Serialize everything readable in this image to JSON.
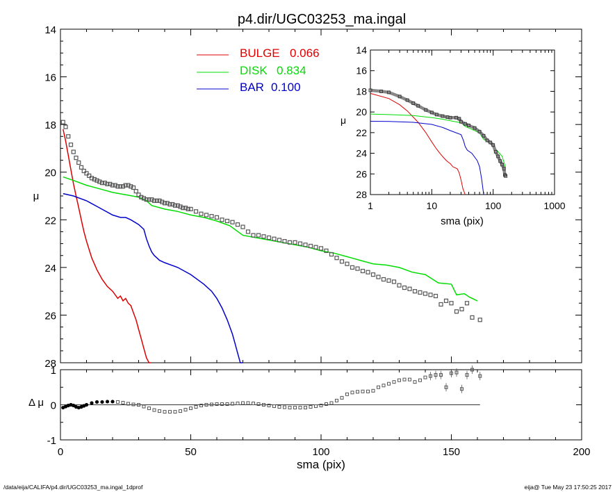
{
  "page": {
    "footer_left": "/data/eija/CALIFA/p4.dir/UGC03253_ma.ingal_1dprof",
    "footer_right": "eija@  Tue May 23 17:50:25 2017"
  },
  "chart_data": [
    {
      "id": "main",
      "type": "line",
      "title": "p4.dir/UGC03253_ma.ingal",
      "xlabel": "",
      "ylabel": "μ",
      "xlim": [
        0,
        200
      ],
      "ylim": [
        28,
        14
      ],
      "y_inverted": true,
      "y_ticks": [
        "14",
        "16",
        "18",
        "20",
        "22",
        "24",
        "26",
        "28"
      ],
      "legend": [
        {
          "label": "BULGE",
          "value": "0.066",
          "color": "#dd0000"
        },
        {
          "label": "DISK",
          "value": "0.834",
          "color": "#00dd00"
        },
        {
          "label": "BAR",
          "value": "0.100",
          "color": "#0000cc"
        }
      ],
      "series": [
        {
          "name": "BULGE",
          "color": "#dd0000",
          "x": [
            1,
            2,
            3,
            4,
            5,
            6,
            7,
            8,
            9,
            10,
            12,
            14,
            16,
            18,
            20,
            22,
            23,
            24,
            25,
            26,
            27,
            28,
            29,
            30,
            31,
            32,
            33,
            34,
            34.7
          ],
          "y": [
            18.2,
            18.7,
            19.3,
            19.9,
            20.5,
            21.0,
            21.5,
            22.0,
            22.5,
            22.9,
            23.6,
            24.1,
            24.5,
            24.8,
            25.0,
            25.3,
            25.2,
            25.4,
            25.3,
            25.5,
            25.6,
            25.9,
            26.2,
            26.6,
            27.0,
            27.4,
            27.8,
            28.1,
            28.5
          ]
        },
        {
          "name": "DISK",
          "color": "#00dd00",
          "x": [
            1,
            5,
            10,
            15,
            20,
            25,
            30,
            33,
            35,
            40,
            45,
            50,
            55,
            60,
            65,
            70,
            75,
            80,
            85,
            90,
            95,
            100,
            105,
            110,
            115,
            120,
            125,
            130,
            135,
            140,
            145,
            150,
            152,
            155,
            157,
            160
          ],
          "y": [
            20.2,
            20.35,
            20.55,
            20.7,
            20.85,
            20.95,
            21.05,
            21.2,
            21.4,
            21.55,
            21.65,
            21.8,
            21.9,
            22.05,
            22.25,
            22.65,
            22.75,
            22.85,
            22.95,
            23.05,
            23.15,
            23.3,
            23.4,
            23.55,
            23.7,
            23.85,
            23.9,
            24.0,
            24.2,
            24.3,
            24.65,
            24.7,
            25.15,
            25.1,
            25.25,
            25.4
          ]
        },
        {
          "name": "BAR",
          "color": "#0000cc",
          "x": [
            1,
            5,
            10,
            15,
            20,
            23,
            25,
            27,
            30,
            32,
            33,
            34,
            35,
            36,
            37,
            38,
            40,
            45,
            50,
            55,
            58,
            60,
            62,
            64,
            66,
            67,
            68,
            69,
            70
          ],
          "y": [
            20.9,
            21.0,
            21.2,
            21.5,
            21.8,
            21.9,
            21.9,
            22.0,
            22.2,
            22.4,
            22.8,
            23.1,
            23.35,
            23.5,
            23.6,
            23.7,
            23.8,
            24.0,
            24.3,
            24.7,
            25.0,
            25.3,
            25.7,
            26.2,
            26.8,
            27.2,
            27.6,
            28.0,
            28.4
          ]
        },
        {
          "name": "",
          "color": "#555555",
          "markers": true,
          "x": [
            1,
            2,
            3,
            4,
            5,
            6,
            7,
            8,
            9,
            10,
            11,
            12,
            13,
            14,
            15,
            16,
            17,
            18,
            19,
            20,
            21,
            22,
            23,
            24,
            25,
            26,
            27,
            28,
            29,
            30,
            31,
            32,
            33,
            34,
            35,
            36,
            37,
            38,
            39,
            40,
            41,
            42,
            43,
            44,
            45,
            46,
            47,
            48,
            49,
            50,
            52,
            54,
            56,
            58,
            60,
            62,
            64,
            66,
            68,
            70,
            72,
            74,
            76,
            78,
            80,
            82,
            84,
            86,
            88,
            90,
            92,
            94,
            96,
            98,
            100,
            102,
            104,
            106,
            108,
            110,
            112,
            114,
            116,
            118,
            120,
            122,
            124,
            126,
            128,
            130,
            132,
            134,
            136,
            138,
            140,
            142,
            144,
            146,
            148,
            150,
            152,
            154,
            156,
            158,
            161
          ],
          "y": [
            17.9,
            18.1,
            18.5,
            18.85,
            19.15,
            19.4,
            19.6,
            19.8,
            19.95,
            20.05,
            20.15,
            20.25,
            20.3,
            20.35,
            20.4,
            20.45,
            20.45,
            20.5,
            20.5,
            20.55,
            20.55,
            20.6,
            20.6,
            20.6,
            20.55,
            20.55,
            20.6,
            20.65,
            20.8,
            20.95,
            21.05,
            21.1,
            21.15,
            21.15,
            21.15,
            21.2,
            21.2,
            21.2,
            21.25,
            21.3,
            21.3,
            21.35,
            21.35,
            21.4,
            21.4,
            21.45,
            21.5,
            21.5,
            21.55,
            21.55,
            21.65,
            21.75,
            21.8,
            21.85,
            21.9,
            22.0,
            22.05,
            22.1,
            22.2,
            22.3,
            22.5,
            22.65,
            22.65,
            22.7,
            22.75,
            22.8,
            22.85,
            22.9,
            22.95,
            22.95,
            23.0,
            23.05,
            23.1,
            23.15,
            23.2,
            23.3,
            23.45,
            23.6,
            23.75,
            23.85,
            24.0,
            24.05,
            24.15,
            24.2,
            24.3,
            24.4,
            24.5,
            24.55,
            24.6,
            24.75,
            24.85,
            24.9,
            25.0,
            25.05,
            25.1,
            25.15,
            25.2,
            25.55,
            25.4,
            25.5,
            25.85,
            25.75,
            25.5,
            26.1,
            26.2
          ]
        }
      ]
    },
    {
      "id": "inset",
      "type": "line",
      "x_scale": "log",
      "xlabel": "sma (pix)",
      "ylabel": "μ",
      "xlim": [
        1,
        1000
      ],
      "ylim": [
        28,
        14
      ],
      "y_inverted": true,
      "x_ticks": [
        "1",
        "10",
        "100",
        "1000"
      ],
      "y_ticks": [
        "14",
        "16",
        "18",
        "20",
        "22",
        "24",
        "26",
        "28"
      ],
      "series": [
        {
          "name": "BULGE",
          "color": "#dd0000",
          "x": [
            1,
            2,
            3,
            4,
            5,
            6,
            8,
            10,
            12,
            14,
            16,
            18,
            20,
            22,
            24,
            26,
            28,
            30,
            32,
            35
          ],
          "y": [
            18.2,
            18.7,
            19.3,
            19.9,
            20.5,
            21.0,
            22.0,
            22.9,
            23.6,
            24.1,
            24.5,
            24.8,
            25.0,
            25.3,
            25.4,
            25.5,
            25.9,
            26.6,
            27.4,
            28.5
          ]
        },
        {
          "name": "DISK",
          "color": "#00dd00",
          "x": [
            1,
            2,
            5,
            10,
            15,
            20,
            30,
            35,
            40,
            50,
            60,
            70,
            80,
            100,
            120,
            140,
            160
          ],
          "y": [
            20.2,
            20.25,
            20.35,
            20.55,
            20.7,
            20.85,
            21.05,
            21.4,
            21.55,
            21.8,
            22.05,
            22.65,
            22.85,
            23.3,
            23.85,
            24.3,
            25.4
          ]
        },
        {
          "name": "BAR",
          "color": "#0000cc",
          "x": [
            1,
            2,
            5,
            10,
            15,
            20,
            30,
            33,
            35,
            38,
            45,
            55,
            60,
            65,
            70
          ],
          "y": [
            20.9,
            20.92,
            21.0,
            21.2,
            21.5,
            21.8,
            22.2,
            22.8,
            23.35,
            23.7,
            24.0,
            24.7,
            25.3,
            26.5,
            28.4
          ]
        },
        {
          "name": "",
          "color": "#555555",
          "markers": true,
          "x": [
            1,
            1.5,
            2,
            3,
            4,
            5,
            6,
            8,
            10,
            12,
            15,
            18,
            20,
            25,
            28,
            30,
            35,
            40,
            50,
            60,
            70,
            80,
            90,
            100,
            110,
            120,
            130,
            140,
            150,
            155,
            160
          ],
          "y": [
            17.9,
            18.0,
            18.1,
            18.5,
            18.85,
            19.15,
            19.4,
            19.8,
            20.05,
            20.25,
            20.4,
            20.5,
            20.55,
            20.55,
            20.65,
            20.95,
            21.15,
            21.3,
            21.55,
            21.9,
            22.3,
            22.75,
            22.95,
            23.2,
            23.85,
            24.3,
            24.75,
            25.1,
            25.5,
            26.1,
            26.2
          ]
        }
      ]
    },
    {
      "id": "residual",
      "type": "scatter",
      "xlabel": "sma (pix)",
      "ylabel": "Δ μ",
      "xlim": [
        0,
        200
      ],
      "ylim": [
        -1,
        1
      ],
      "x_ticks": [
        "0",
        "50",
        "100",
        "150",
        "200"
      ],
      "y_ticks": [
        "1",
        "0",
        "-1"
      ],
      "reference_line": 0,
      "series": [
        {
          "name": "",
          "color": "#555555",
          "x": [
            1,
            2,
            3,
            4,
            5,
            6,
            7,
            8,
            9,
            10,
            12,
            14,
            16,
            18,
            20,
            22,
            24,
            26,
            28,
            30,
            32,
            34,
            36,
            38,
            40,
            42,
            44,
            46,
            48,
            50,
            52,
            54,
            56,
            58,
            60,
            62,
            64,
            66,
            68,
            70,
            72,
            74,
            76,
            78,
            80,
            82,
            84,
            86,
            88,
            90,
            92,
            94,
            96,
            98,
            100,
            102,
            104,
            106,
            108,
            110,
            112,
            114,
            116,
            118,
            120,
            122,
            124,
            126,
            128,
            130,
            132,
            134,
            136,
            138,
            140,
            142,
            144,
            146,
            148,
            150,
            152,
            154,
            156,
            158,
            161
          ],
          "y": [
            -0.08,
            -0.05,
            -0.02,
            0.0,
            -0.02,
            -0.06,
            -0.08,
            -0.06,
            -0.03,
            0.0,
            0.05,
            0.08,
            0.08,
            0.09,
            0.09,
            0.08,
            0.06,
            0.03,
            0.01,
            0.0,
            -0.05,
            -0.1,
            -0.15,
            -0.18,
            -0.2,
            -0.2,
            -0.2,
            -0.18,
            -0.14,
            -0.1,
            -0.06,
            -0.02,
            0.0,
            0.01,
            0.02,
            0.02,
            0.02,
            0.03,
            0.04,
            0.05,
            0.05,
            0.04,
            0.02,
            0.0,
            -0.02,
            -0.04,
            -0.06,
            -0.07,
            -0.08,
            -0.08,
            -0.08,
            -0.08,
            -0.06,
            -0.04,
            -0.02,
            0.02,
            0.05,
            0.12,
            0.2,
            0.3,
            0.35,
            0.37,
            0.38,
            0.38,
            0.4,
            0.5,
            0.55,
            0.6,
            0.65,
            0.7,
            0.72,
            0.72,
            0.65,
            0.7,
            0.78,
            0.82,
            0.85,
            0.85,
            0.5,
            0.9,
            0.92,
            0.45,
            0.85,
            1.0,
            0.82
          ]
        }
      ]
    }
  ]
}
